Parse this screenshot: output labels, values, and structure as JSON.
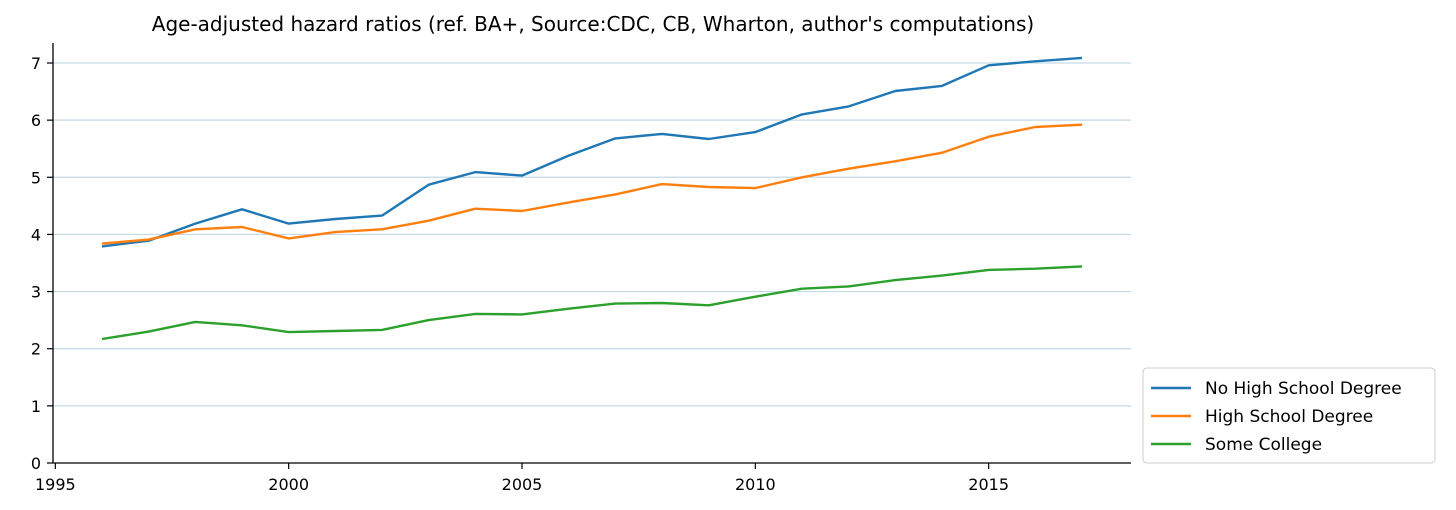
{
  "chart_data": {
    "type": "line",
    "title": "Age-adjusted hazard ratios (ref. BA+, Source:CDC, CB, Wharton, author's computations)",
    "xlabel": "",
    "ylabel": "",
    "x": [
      1996,
      1997,
      1998,
      1999,
      2000,
      2001,
      2002,
      2003,
      2004,
      2005,
      2006,
      2007,
      2008,
      2009,
      2010,
      2011,
      2012,
      2013,
      2014,
      2015,
      2016,
      2017
    ],
    "xlim": [
      1994.95,
      2018.05
    ],
    "ylim": [
      0,
      7.35
    ],
    "xticks": [
      1995,
      2000,
      2005,
      2010,
      2015
    ],
    "yticks": [
      0,
      1,
      2,
      3,
      4,
      5,
      6,
      7
    ],
    "grid": "horizontal",
    "legend_position": "outside-lower-right",
    "series": [
      {
        "name": "No High School Degree",
        "color": "#1f77b4",
        "values": [
          3.79,
          3.89,
          4.19,
          4.44,
          4.19,
          4.27,
          4.33,
          4.87,
          5.09,
          5.03,
          5.38,
          5.68,
          5.76,
          5.67,
          5.79,
          6.1,
          6.24,
          6.51,
          6.6,
          6.96,
          7.03,
          7.09
        ]
      },
      {
        "name": "High School Degree",
        "color": "#ff7f0e",
        "values": [
          3.84,
          3.91,
          4.09,
          4.13,
          3.93,
          4.04,
          4.09,
          4.24,
          4.45,
          4.41,
          4.56,
          4.7,
          4.88,
          4.83,
          4.81,
          5.0,
          5.15,
          5.28,
          5.43,
          5.71,
          5.88,
          5.92
        ]
      },
      {
        "name": "Some College",
        "color": "#2ca02c",
        "values": [
          2.17,
          2.3,
          2.47,
          2.41,
          2.29,
          2.31,
          2.33,
          2.5,
          2.61,
          2.6,
          2.7,
          2.79,
          2.8,
          2.76,
          2.91,
          3.05,
          3.09,
          3.2,
          3.28,
          3.38,
          3.4,
          3.44
        ]
      }
    ]
  },
  "colors": {
    "grid": "#c3dae6",
    "axis": "#000000"
  }
}
